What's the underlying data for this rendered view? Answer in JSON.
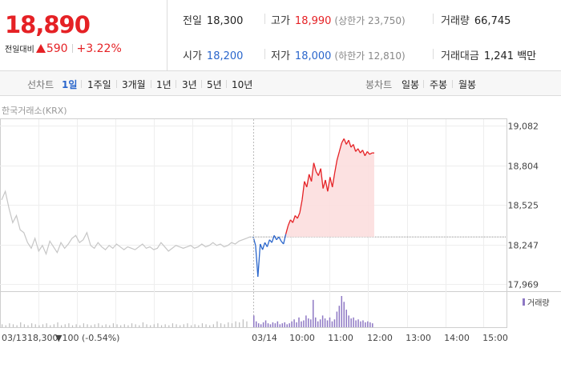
{
  "price": {
    "current": "18,890",
    "change_label": "전일대비",
    "change_value": "590",
    "change_pct": "+3.22%"
  },
  "stats": {
    "prev_close": {
      "label": "전일",
      "value": "18,300"
    },
    "high": {
      "label": "고가",
      "value": "18,990",
      "sub": "(상한가 23,750)"
    },
    "volume": {
      "label": "거래량",
      "value": "66,745"
    },
    "open": {
      "label": "시가",
      "value": "18,200"
    },
    "low": {
      "label": "저가",
      "value": "18,000",
      "sub": "(하한가 12,810)"
    },
    "amount": {
      "label": "거래대금",
      "value": "1,241 백만"
    }
  },
  "period_bar": {
    "line_label": "선차트",
    "line_periods": [
      "1일",
      "1주일",
      "3개월",
      "1년",
      "3년",
      "5년",
      "10년"
    ],
    "selected": "1일",
    "candle_label": "봉차트",
    "candle_periods": [
      "일봉",
      "주봉",
      "월봉"
    ]
  },
  "exchange_label": "한국거래소(KRX)",
  "colors": {
    "up": "#e52125",
    "down": "#2a66cc",
    "fill": "#fcdcdc",
    "prev_day": "#c6c6c6",
    "volume_today": "#8e78c4",
    "volume_prev": "#bdbdbd"
  },
  "chart_data": {
    "type": "line",
    "ylim": [
      17969,
      19082
    ],
    "yticks": [
      "19,082",
      "18,804",
      "18,525",
      "18,247",
      "17,969"
    ],
    "baseline": 18300,
    "legend": "거래량",
    "xticks": [
      "03/14",
      "10:00",
      "11:00",
      "12:00",
      "13:00",
      "14:00",
      "15:00"
    ],
    "prev_day_label": "03/13",
    "prev_day_close": "18,300",
    "prev_day_change": "▼100 (-0.54%)",
    "series": [
      {
        "name": "03/13",
        "values": [
          18560,
          18620,
          18500,
          18400,
          18450,
          18350,
          18330,
          18260,
          18220,
          18290,
          18200,
          18240,
          18180,
          18270,
          18230,
          18190,
          18260,
          18220,
          18250,
          18290,
          18310,
          18260,
          18280,
          18330,
          18240,
          18220,
          18260,
          18230,
          18210,
          18240,
          18220,
          18250,
          18230,
          18210,
          18230,
          18220,
          18210,
          18230,
          18250,
          18220,
          18230,
          18210,
          18220,
          18260,
          18230,
          18200,
          18220,
          18240,
          18230,
          18220,
          18230,
          18240,
          18220,
          18230,
          18250,
          18230,
          18240,
          18260,
          18240,
          18250,
          18230,
          18240,
          18260,
          18250,
          18270,
          18280,
          18290,
          18300
        ]
      },
      {
        "name": "03/14",
        "values": [
          18300,
          18240,
          18020,
          18250,
          18210,
          18260,
          18230,
          18280,
          18260,
          18310,
          18280,
          18300,
          18270,
          18250,
          18320,
          18380,
          18420,
          18400,
          18450,
          18430,
          18470,
          18560,
          18690,
          18650,
          18740,
          18690,
          18820,
          18760,
          18730,
          18780,
          18640,
          18700,
          18620,
          18720,
          18650,
          18750,
          18840,
          18900,
          18960,
          18990,
          18950,
          18980,
          18930,
          18950,
          18900,
          18920,
          18890,
          18910,
          18870,
          18900,
          18880,
          18890,
          18890
        ]
      }
    ],
    "volume_prev": [
      3,
      2,
      4,
      3,
      2,
      5,
      3,
      2,
      4,
      3,
      2,
      3,
      4,
      2,
      3,
      5,
      2,
      3,
      4,
      2,
      3,
      2,
      4,
      3,
      2,
      3,
      4,
      2,
      3,
      2,
      4,
      3,
      2,
      3,
      2,
      4,
      3,
      2,
      5,
      3,
      2,
      3,
      4,
      2,
      3,
      2,
      4,
      3,
      2,
      3,
      4,
      2,
      3,
      2,
      4,
      3,
      2,
      3,
      6,
      4,
      3,
      5,
      4,
      6,
      5,
      8,
      6
    ],
    "volume_today": [
      12,
      6,
      4,
      3,
      5,
      7,
      4,
      3,
      5,
      4,
      6,
      3,
      4,
      5,
      3,
      4,
      6,
      8,
      5,
      10,
      6,
      7,
      12,
      9,
      8,
      28,
      10,
      6,
      8,
      12,
      9,
      7,
      10,
      6,
      8,
      16,
      22,
      32,
      26,
      18,
      12,
      9,
      10,
      7,
      8,
      6,
      7,
      5,
      6,
      5,
      4
    ]
  }
}
